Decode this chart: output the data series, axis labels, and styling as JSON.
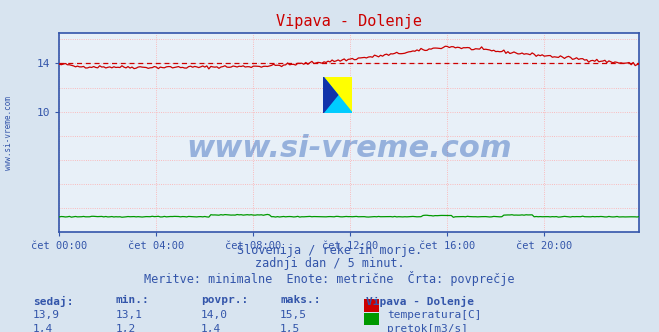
{
  "title": "Vipava - Dolenje",
  "bg_color": "#d8e4f0",
  "plot_bg_color": "#e8f0f8",
  "grid_color": "#ffaaaa",
  "xlabel_ticks": [
    "čet 00:00",
    "čet 04:00",
    "čet 08:00",
    "čet 12:00",
    "čet 16:00",
    "čet 20:00"
  ],
  "ytick_vals": [
    10,
    14
  ],
  "ylim": [
    0,
    16.5
  ],
  "xlim": [
    0,
    287
  ],
  "avg_line_value": 14.0,
  "avg_line_color": "#cc0000",
  "temp_color": "#cc0000",
  "flow_color": "#009900",
  "axis_color": "#3355aa",
  "tick_color": "#3355aa",
  "watermark_text": "www.si-vreme.com",
  "watermark_color": "#3366bb",
  "watermark_alpha": 0.45,
  "watermark_fontsize": 22,
  "subtitle_lines": [
    "Slovenija / reke in morje.",
    "zadnji dan / 5 minut.",
    "Meritve: minimalne  Enote: metrične  Črta: povprečje"
  ],
  "subtitle_color": "#3355aa",
  "subtitle_fontsize": 8.5,
  "table_headers": [
    "sedaj:",
    "min.:",
    "povpr.:",
    "maks.:",
    "Vipava - Dolenje"
  ],
  "table_row1": [
    "13,9",
    "13,1",
    "14,0",
    "15,5",
    "temperatura[C]"
  ],
  "table_row2": [
    "1,4",
    "1,2",
    "1,4",
    "1,5",
    "pretok[m3/s]"
  ],
  "table_color": "#3355aa",
  "n_points": 288,
  "temp_min": 13.1,
  "temp_max": 15.5,
  "flow_min": 1.2,
  "flow_max": 1.5,
  "left_label": "www.si-vreme.com",
  "left_label_color": "#3355aa"
}
